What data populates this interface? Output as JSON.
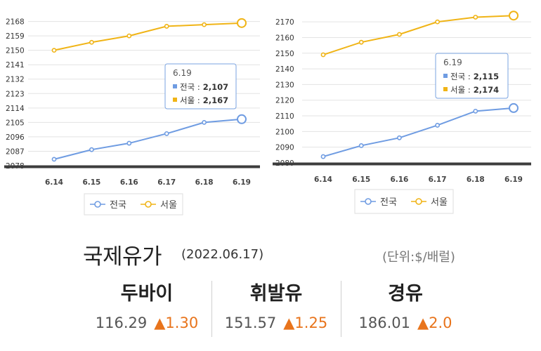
{
  "chart_data": [
    {
      "type": "line",
      "categories": [
        "6.14",
        "6.15",
        "6.16",
        "6.17",
        "6.18",
        "6.19"
      ],
      "series": [
        {
          "name": "전국",
          "values": [
            2082,
            2088,
            2092,
            2098,
            2105,
            2107
          ],
          "color": "#6f9ce2"
        },
        {
          "name": "서울",
          "values": [
            2150,
            2155,
            2159,
            2165,
            2166,
            2167
          ],
          "color": "#f0b416"
        }
      ],
      "yticks": [
        "2078",
        "2087",
        "2096",
        "2105",
        "2114",
        "2123",
        "2132",
        "2141",
        "2150",
        "2159",
        "2168"
      ],
      "ylim": [
        2078,
        2170
      ],
      "tooltip": {
        "title": "6.19",
        "rows": [
          "전국 : 2,107",
          "서울 : 2,167"
        ]
      },
      "legend": [
        "전국",
        "서울"
      ]
    },
    {
      "type": "line",
      "categories": [
        "6.14",
        "6.15",
        "6.16",
        "6.17",
        "6.18",
        "6.19"
      ],
      "series": [
        {
          "name": "전국",
          "values": [
            2084,
            2091,
            2096,
            2104,
            2113,
            2115
          ],
          "color": "#6f9ce2"
        },
        {
          "name": "서울",
          "values": [
            2149,
            2157,
            2162,
            2170,
            2173,
            2174
          ],
          "color": "#f0b416"
        }
      ],
      "yticks": [
        "2080",
        "2090",
        "2100",
        "2110",
        "2120",
        "2130",
        "2140",
        "2150",
        "2160",
        "2170"
      ],
      "ylim": [
        2080,
        2175
      ],
      "tooltip": {
        "title": "6.19",
        "rows": [
          "전국 : 2,115",
          "서울 : 2,174"
        ]
      },
      "legend": [
        "전국",
        "서울"
      ]
    }
  ],
  "oil": {
    "title": "국제유가",
    "date": "(2022.06.17)",
    "unit": "(단위:$/배럴)",
    "items": [
      {
        "name": "두바이",
        "value": "116.29",
        "change": "▲1.30"
      },
      {
        "name": "휘발유",
        "value": "151.57",
        "change": "▲1.25"
      },
      {
        "name": "경유",
        "value": "186.01",
        "change": "▲2.0"
      }
    ]
  }
}
